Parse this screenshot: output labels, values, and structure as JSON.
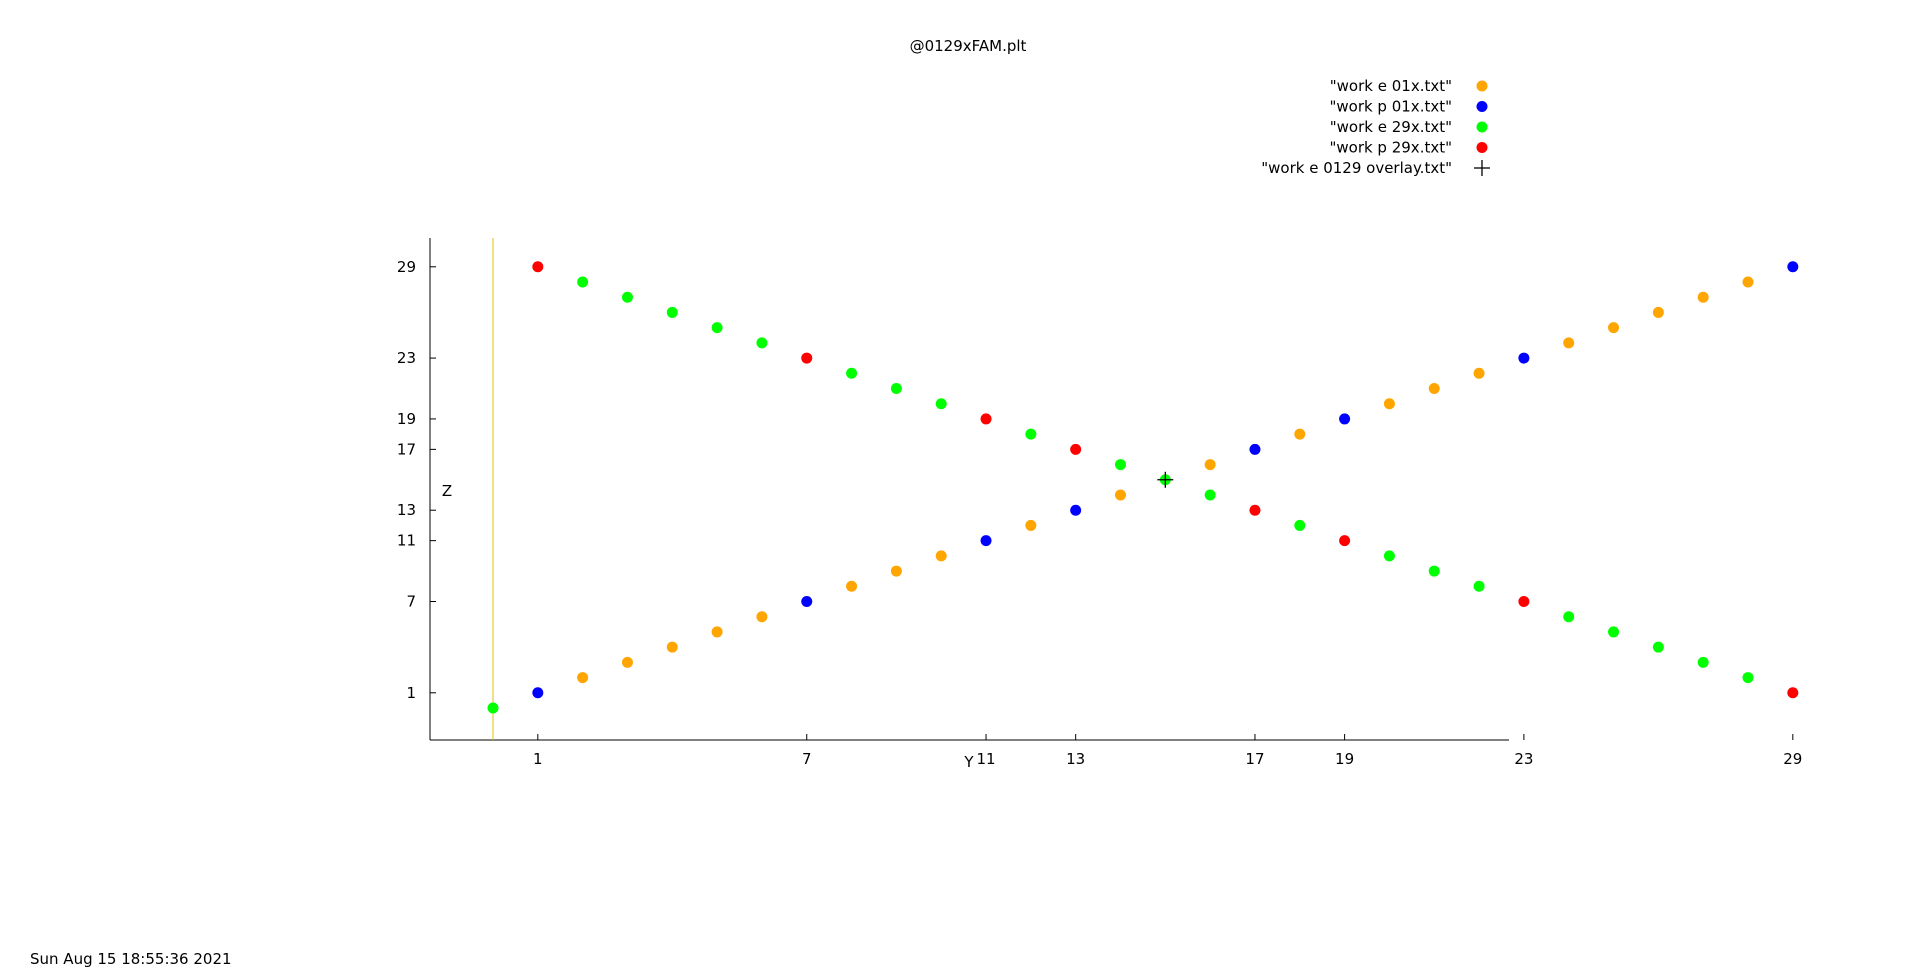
{
  "page": {
    "title": "@0129xFAM.plt",
    "timestamp": "Sun Aug 15 18:55:36 2021"
  },
  "chart_data": {
    "type": "scatter",
    "title": "@0129xFAM.plt",
    "xlabel": "Y",
    "ylabel": "Z",
    "xlim": [
      -2,
      32
    ],
    "ylim": [
      -2,
      32
    ],
    "xticks": [
      1,
      7,
      11,
      13,
      17,
      19,
      23,
      29
    ],
    "yticks": [
      1,
      7,
      11,
      13,
      17,
      19,
      23,
      29
    ],
    "grid": false,
    "legend_position": "top-right",
    "vertical_line": {
      "x": 0,
      "color": "#e6c200"
    },
    "series": [
      {
        "name": "\"work e 01x.txt\"",
        "marker": "circle",
        "color": "#ffa500",
        "points": [
          [
            2,
            2
          ],
          [
            3,
            3
          ],
          [
            4,
            4
          ],
          [
            5,
            5
          ],
          [
            6,
            6
          ],
          [
            8,
            8
          ],
          [
            9,
            9
          ],
          [
            10,
            10
          ],
          [
            12,
            12
          ],
          [
            14,
            14
          ],
          [
            16,
            16
          ],
          [
            18,
            18
          ],
          [
            20,
            20
          ],
          [
            21,
            21
          ],
          [
            22,
            22
          ],
          [
            24,
            24
          ],
          [
            25,
            25
          ],
          [
            26,
            26
          ],
          [
            27,
            27
          ],
          [
            28,
            28
          ]
        ]
      },
      {
        "name": "\"work p 01x.txt\"",
        "marker": "circle",
        "color": "#0000ff",
        "points": [
          [
            1,
            1
          ],
          [
            7,
            7
          ],
          [
            11,
            11
          ],
          [
            13,
            13
          ],
          [
            17,
            17
          ],
          [
            19,
            19
          ],
          [
            23,
            23
          ],
          [
            29,
            29
          ]
        ]
      },
      {
        "name": "\"work e 29x.txt\"",
        "marker": "circle",
        "color": "#00ff00",
        "points": [
          [
            0,
            0
          ],
          [
            2,
            28
          ],
          [
            3,
            27
          ],
          [
            4,
            26
          ],
          [
            5,
            25
          ],
          [
            6,
            24
          ],
          [
            8,
            22
          ],
          [
            9,
            21
          ],
          [
            10,
            20
          ],
          [
            12,
            18
          ],
          [
            14,
            16
          ],
          [
            15,
            15
          ],
          [
            16,
            14
          ],
          [
            18,
            12
          ],
          [
            20,
            10
          ],
          [
            21,
            9
          ],
          [
            22,
            8
          ],
          [
            24,
            6
          ],
          [
            25,
            5
          ],
          [
            26,
            4
          ],
          [
            27,
            3
          ],
          [
            28,
            2
          ]
        ]
      },
      {
        "name": "\"work p 29x.txt\"",
        "marker": "circle",
        "color": "#ff0000",
        "points": [
          [
            1,
            29
          ],
          [
            7,
            23
          ],
          [
            11,
            19
          ],
          [
            13,
            17
          ],
          [
            17,
            13
          ],
          [
            19,
            11
          ],
          [
            23,
            7
          ],
          [
            29,
            1
          ]
        ]
      },
      {
        "name": "\"work e 0129 overlay.txt\"",
        "marker": "plus",
        "color": "#000000",
        "points": [
          [
            15,
            15
          ]
        ]
      }
    ]
  }
}
